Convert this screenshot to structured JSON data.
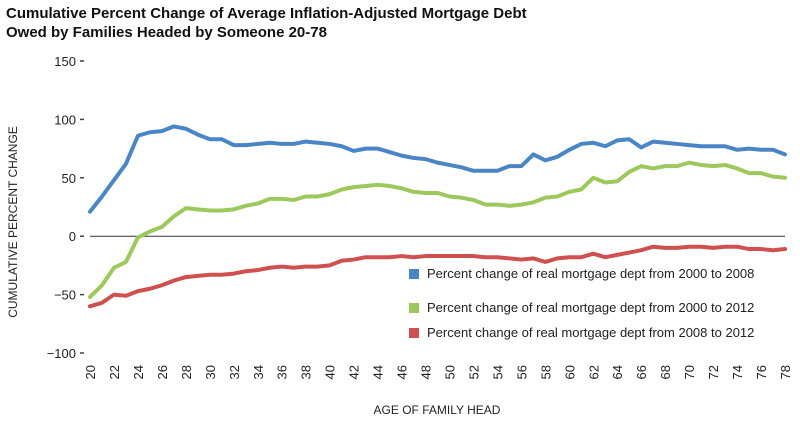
{
  "chart_data": {
    "type": "line",
    "title": "Cumulative Percent Change of Average Inflation-Adjusted Mortgage Debt",
    "subtitle": "Owed by Families Headed by Someone 20-78",
    "xlabel": "AGE OF FAMILY HEAD",
    "ylabel": "CUMULATIVE PERCENT CHANGE",
    "ylim": [
      -100,
      150
    ],
    "yticks": [
      150,
      100,
      50,
      0,
      -50,
      -100
    ],
    "ytick_labels": [
      "150",
      "100",
      "50",
      "0",
      "−50",
      "−100"
    ],
    "xlim": [
      20,
      78
    ],
    "xticks": [
      20,
      22,
      24,
      26,
      28,
      30,
      32,
      34,
      36,
      38,
      40,
      42,
      44,
      46,
      48,
      50,
      52,
      54,
      56,
      58,
      60,
      62,
      64,
      66,
      68,
      70,
      72,
      74,
      76,
      78
    ],
    "x": [
      20,
      21,
      22,
      23,
      24,
      25,
      26,
      27,
      28,
      29,
      30,
      31,
      32,
      33,
      34,
      35,
      36,
      37,
      38,
      39,
      40,
      41,
      42,
      43,
      44,
      45,
      46,
      47,
      48,
      49,
      50,
      51,
      52,
      53,
      54,
      55,
      56,
      57,
      58,
      59,
      60,
      61,
      62,
      63,
      64,
      65,
      66,
      67,
      68,
      69,
      70,
      71,
      72,
      73,
      74,
      75,
      76,
      77,
      78
    ],
    "grid": false,
    "zero_line": true,
    "legend_position": "bottom-right",
    "series": [
      {
        "name": "Percent change of real mortgage dept from 2000 to 2008",
        "color": "#4a86c5",
        "values": [
          21,
          34,
          48,
          62,
          86,
          89,
          90,
          94,
          92,
          87,
          83,
          83,
          78,
          78,
          79,
          80,
          79,
          79,
          81,
          80,
          79,
          77,
          73,
          75,
          75,
          72,
          69,
          67,
          66,
          63,
          61,
          59,
          56,
          56,
          56,
          60,
          60,
          70,
          65,
          68,
          74,
          79,
          80,
          77,
          82,
          83,
          76,
          81,
          80,
          79,
          78,
          77,
          77,
          77,
          74,
          75,
          74,
          74,
          70
        ]
      },
      {
        "name": "Percent change of real mortgage dept from 2000 to 2012",
        "color": "#9dc95c",
        "values": [
          -52,
          -42,
          -27,
          -22,
          -1,
          4,
          8,
          17,
          24,
          23,
          22,
          22,
          23,
          26,
          28,
          32,
          32,
          31,
          34,
          34,
          36,
          40,
          42,
          43,
          44,
          43,
          41,
          38,
          37,
          37,
          34,
          33,
          31,
          27,
          27,
          26,
          27,
          29,
          33,
          34,
          38,
          40,
          50,
          46,
          47,
          55,
          60,
          58,
          60,
          60,
          63,
          61,
          60,
          61,
          58,
          54,
          54,
          51,
          50
        ]
      },
      {
        "name": "Percent change of real mortgage dept from 2008 to 2012",
        "color": "#d0504f",
        "values": [
          -60,
          -57,
          -50,
          -51,
          -47,
          -45,
          -42,
          -38,
          -35,
          -34,
          -33,
          -33,
          -32,
          -30,
          -29,
          -27,
          -26,
          -27,
          -26,
          -26,
          -25,
          -21,
          -20,
          -18,
          -18,
          -18,
          -17,
          -18,
          -17,
          -17,
          -17,
          -17,
          -17,
          -18,
          -18,
          -19,
          -20,
          -19,
          -22,
          -19,
          -18,
          -18,
          -15,
          -18,
          -16,
          -14,
          -12,
          -9,
          -10,
          -10,
          -9,
          -9,
          -10,
          -9,
          -9,
          -11,
          -11,
          -12,
          -11
        ]
      }
    ]
  }
}
